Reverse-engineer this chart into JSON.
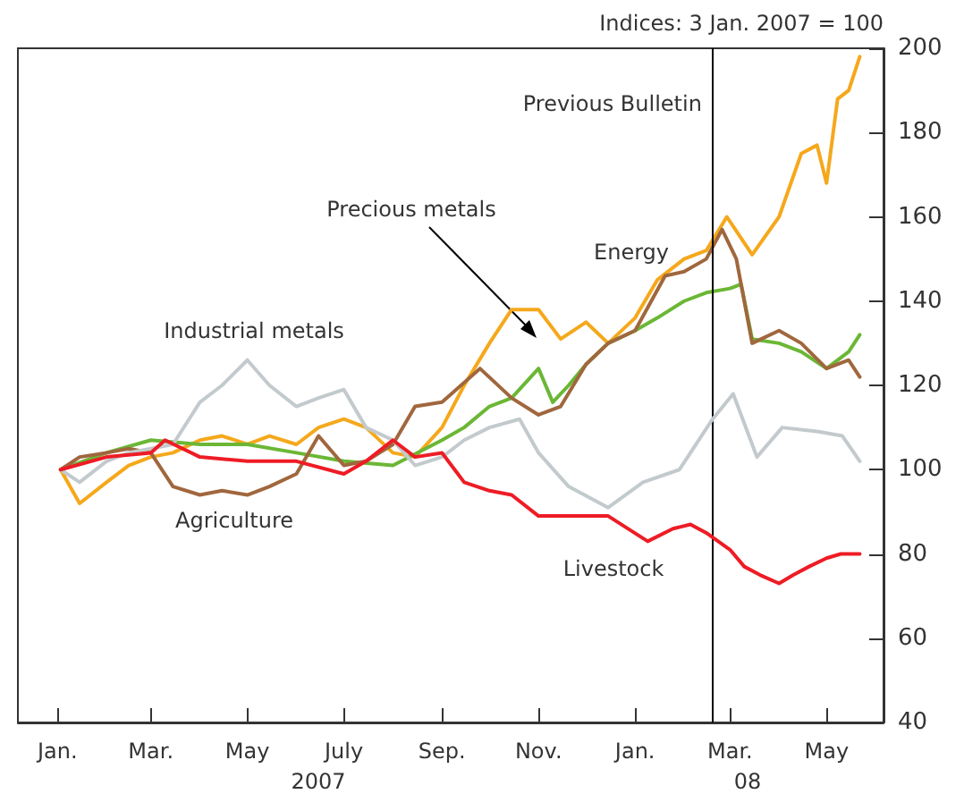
{
  "chart_data": {
    "type": "line",
    "ylabel": "Indices: 3 Jan. 2007 = 100",
    "annotations": [
      "2007",
      "08"
    ],
    "xlim": [
      "2006-12-07",
      "2008-06-06"
    ],
    "xticks": [
      {
        "value": "2007-01-01",
        "label": "Jan."
      },
      {
        "value": "2007-03-01",
        "label": "Mar."
      },
      {
        "value": "2007-05-01",
        "label": "May"
      },
      {
        "value": "2007-07-01",
        "label": "July"
      },
      {
        "value": "2007-09-01",
        "label": "Sep."
      },
      {
        "value": "2007-11-01",
        "label": "Nov."
      },
      {
        "value": "2008-01-01",
        "label": "Jan."
      },
      {
        "value": "2008-03-01",
        "label": "Mar."
      },
      {
        "value": "2008-05-01",
        "label": "May"
      }
    ],
    "ylim": [
      40,
      200
    ],
    "yticks": [
      40,
      60,
      80,
      100,
      120,
      140,
      160,
      180,
      200
    ],
    "ref_lines": [
      {
        "axis": "x",
        "value": "2008-02-19",
        "label": "Previous Bulletin",
        "color": "#000000"
      }
    ],
    "series": [
      {
        "name": "Energy",
        "color": "#f5a81c",
        "x": [
          "2007-01-03",
          "2007-01-15",
          "2007-02-01",
          "2007-02-15",
          "2007-03-01",
          "2007-03-15",
          "2007-04-01",
          "2007-04-15",
          "2007-05-01",
          "2007-05-15",
          "2007-06-01",
          "2007-06-15",
          "2007-07-01",
          "2007-07-15",
          "2007-08-01",
          "2007-08-15",
          "2007-09-01",
          "2007-09-15",
          "2007-10-01",
          "2007-10-15",
          "2007-11-01",
          "2007-11-15",
          "2007-12-01",
          "2007-12-15",
          "2008-01-01",
          "2008-01-15",
          "2008-02-01",
          "2008-02-15",
          "2008-02-28",
          "2008-03-15",
          "2008-04-01",
          "2008-04-15",
          "2008-04-25",
          "2008-05-01",
          "2008-05-08",
          "2008-05-15",
          "2008-05-22"
        ],
        "values": [
          100,
          92,
          97,
          101,
          103,
          104,
          107,
          108,
          106,
          108,
          106,
          110,
          112,
          110,
          104,
          103,
          110,
          120,
          130,
          138,
          138,
          131,
          135,
          130,
          136,
          145,
          150,
          152,
          160,
          151,
          160,
          175,
          177,
          168,
          188,
          190,
          198
        ]
      },
      {
        "name": "Precious metals",
        "color": "#6bb735",
        "x": [
          "2007-01-03",
          "2007-02-01",
          "2007-03-01",
          "2007-04-01",
          "2007-05-01",
          "2007-06-01",
          "2007-07-01",
          "2007-08-01",
          "2007-09-01",
          "2007-09-15",
          "2007-10-01",
          "2007-10-15",
          "2007-11-01",
          "2007-11-10",
          "2007-11-20",
          "2007-12-01",
          "2007-12-15",
          "2008-01-01",
          "2008-01-15",
          "2008-02-01",
          "2008-02-15",
          "2008-03-01",
          "2008-03-08",
          "2008-03-15",
          "2008-04-01",
          "2008-04-15",
          "2008-05-01",
          "2008-05-15",
          "2008-05-22"
        ],
        "values": [
          100,
          104,
          107,
          106,
          106,
          104,
          102,
          101,
          107,
          110,
          115,
          117,
          124,
          116,
          120,
          125,
          130,
          133,
          136,
          140,
          142,
          143,
          144,
          131,
          130,
          128,
          124,
          128,
          132
        ]
      },
      {
        "name": "Agriculture",
        "color": "#a0673d",
        "x": [
          "2007-01-03",
          "2007-01-15",
          "2007-02-01",
          "2007-02-15",
          "2007-03-01",
          "2007-03-15",
          "2007-04-01",
          "2007-04-15",
          "2007-05-01",
          "2007-05-15",
          "2007-06-01",
          "2007-06-15",
          "2007-07-01",
          "2007-07-15",
          "2007-08-01",
          "2007-08-15",
          "2007-09-01",
          "2007-09-25",
          "2007-10-15",
          "2007-11-01",
          "2007-11-15",
          "2007-12-01",
          "2007-12-15",
          "2008-01-01",
          "2008-01-20",
          "2008-02-01",
          "2008-02-15",
          "2008-02-25",
          "2008-03-05",
          "2008-03-15",
          "2008-04-01",
          "2008-04-15",
          "2008-05-01",
          "2008-05-15",
          "2008-05-22"
        ],
        "values": [
          100,
          103,
          104,
          105,
          104,
          96,
          94,
          95,
          94,
          96,
          99,
          108,
          101,
          102,
          106,
          115,
          116,
          124,
          117,
          113,
          115,
          125,
          130,
          133,
          146,
          147,
          150,
          157,
          150,
          130,
          133,
          130,
          124,
          126,
          122
        ]
      },
      {
        "name": "Industrial metals",
        "color": "#c3cacd",
        "x": [
          "2007-01-03",
          "2007-01-15",
          "2007-02-01",
          "2007-02-15",
          "2007-03-01",
          "2007-03-15",
          "2007-04-01",
          "2007-04-15",
          "2007-05-01",
          "2007-05-15",
          "2007-06-01",
          "2007-06-15",
          "2007-07-01",
          "2007-07-15",
          "2007-08-01",
          "2007-08-15",
          "2007-09-01",
          "2007-09-15",
          "2007-10-01",
          "2007-10-20",
          "2007-11-01",
          "2007-11-20",
          "2007-12-15",
          "2008-01-06",
          "2008-01-29",
          "2008-02-19",
          "2008-03-03",
          "2008-03-18",
          "2008-04-03",
          "2008-04-26",
          "2008-05-11",
          "2008-05-22"
        ],
        "values": [
          100,
          97,
          102,
          104,
          105,
          106,
          116,
          120,
          126,
          120,
          115,
          117,
          119,
          110,
          107,
          101,
          103,
          107,
          110,
          112,
          104,
          96,
          91,
          97,
          100,
          112,
          118,
          103,
          110,
          109,
          108,
          102
        ]
      },
      {
        "name": "Livestock",
        "color": "#ee1c25",
        "x": [
          "2007-01-03",
          "2007-02-01",
          "2007-03-01",
          "2007-03-10",
          "2007-04-01",
          "2007-05-01",
          "2007-06-01",
          "2007-07-01",
          "2007-07-15",
          "2007-08-01",
          "2007-08-15",
          "2007-09-01",
          "2007-09-15",
          "2007-10-01",
          "2007-10-15",
          "2007-11-01",
          "2007-11-20",
          "2007-12-15",
          "2008-01-09",
          "2008-01-25",
          "2008-02-05",
          "2008-02-15",
          "2008-03-01",
          "2008-03-10",
          "2008-03-20",
          "2008-04-01",
          "2008-04-10",
          "2008-04-20",
          "2008-05-01",
          "2008-05-10",
          "2008-05-22"
        ],
        "values": [
          100,
          103,
          104,
          107,
          103,
          102,
          102,
          99,
          102,
          107,
          103,
          104,
          97,
          95,
          94,
          89,
          89,
          89,
          83,
          86,
          87,
          85,
          81,
          77,
          75,
          73,
          75,
          77,
          79,
          80,
          80
        ]
      }
    ]
  }
}
